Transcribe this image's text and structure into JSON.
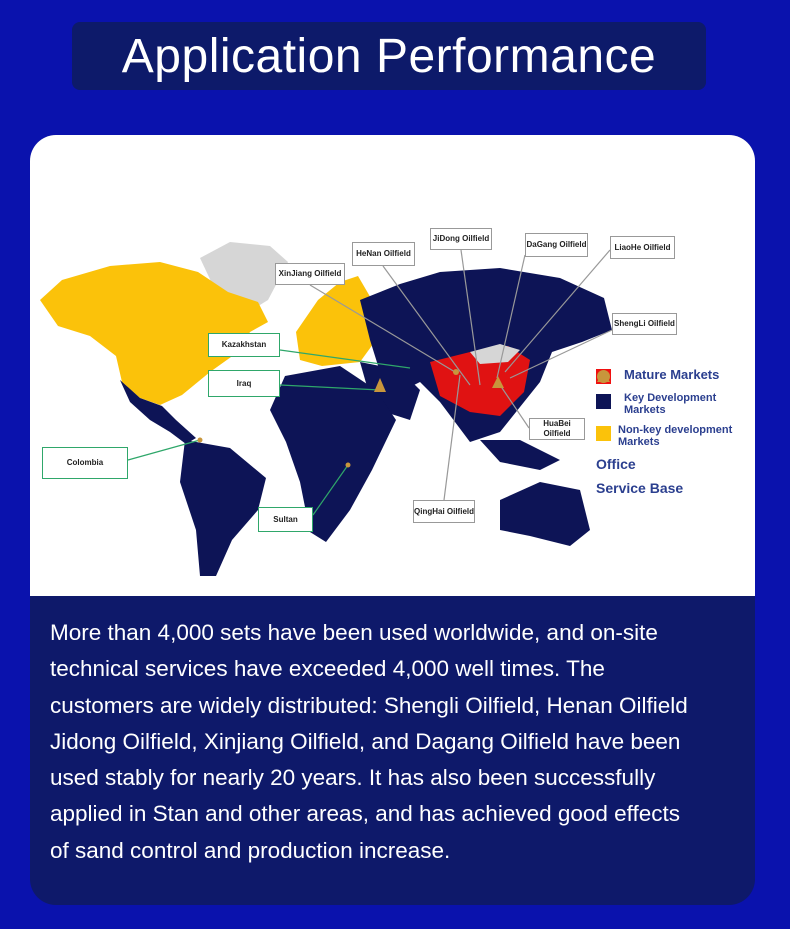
{
  "title": "Application Performance",
  "map": {
    "callouts": {
      "xinjiang": "XinJiang Oilfield",
      "henan": "HeNan Oilfield",
      "jidong": "JiDong Oilfield",
      "dagang": "DaGang Oilfield",
      "liaohe": "LiaoHe Oilfield",
      "shengli": "ShengLi Oilfield",
      "huabei": "HuaBei Oilfield",
      "qinghai": "QingHai Oilfield",
      "kazakhstan": "Kazakhstan",
      "iraq": "Iraq",
      "colombia": "Colombia",
      "sultan": "Sultan"
    },
    "legend": [
      {
        "label": "Mature Markets",
        "color": "#f01010",
        "shape": "square"
      },
      {
        "label": "Key Development Markets",
        "color": "#0d1456",
        "shape": "square"
      },
      {
        "label": "Non-key development Markets",
        "color": "#fbc20a",
        "shape": "square"
      },
      {
        "label": "Office",
        "color": "#c8963c",
        "shape": "triangle"
      },
      {
        "label": "Service Base",
        "color": "#c8963c",
        "shape": "circle"
      }
    ]
  },
  "description_lines": [
    "More than 4,000 sets have been used worldwide, and on-site",
    "technical services have exceeded 4,000 well times. The",
    "customers are widely distributed: Shengli Oilfield, Henan Oilfield",
    "Jidong Oilfield, Xinjiang Oilfield, and Dagang Oilfield have been",
    "used stably for nearly 20 years. It has also been successfully",
    "applied in Stan and other areas, and has achieved good effects",
    "of sand control and production increase."
  ]
}
